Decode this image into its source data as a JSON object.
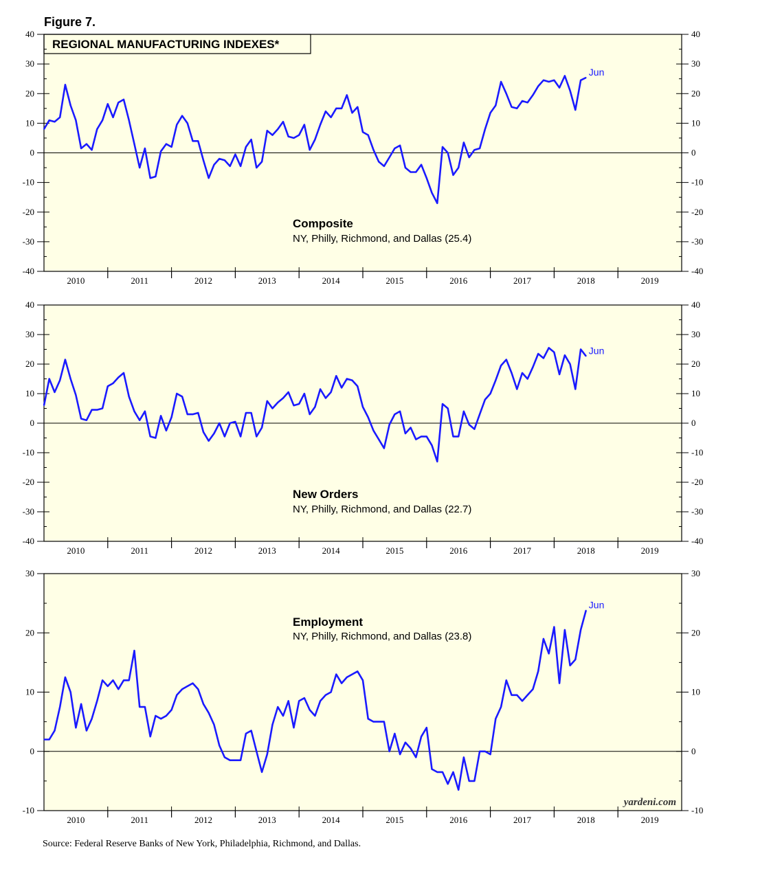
{
  "figure_label": "Figure 7.",
  "title": "REGIONAL MANUFACTURING INDEXES*",
  "source": "Source: Federal Reserve Banks of New York, Philadelphia, Richmond, and Dallas.",
  "watermark": "yardeni.com",
  "colors": {
    "background": "#ffffe6",
    "line": "#1a1aff",
    "axis": "#000000"
  },
  "chart_data": [
    {
      "type": "line",
      "title": "Composite",
      "subtitle": "NY, Philly, Richmond, and Dallas (25.4)",
      "end_label": "Jun",
      "ylim": [
        -40,
        40
      ],
      "yticks": [
        "40",
        "30",
        "20",
        "10",
        "0",
        "-10",
        "-20",
        "-30",
        "-40"
      ],
      "ytick_values": [
        40,
        30,
        20,
        10,
        0,
        -10,
        -20,
        -30,
        -40
      ],
      "year_labels": [
        "2010",
        "2011",
        "2012",
        "2013",
        "2014",
        "2015",
        "2016",
        "2017",
        "2018",
        "2019"
      ],
      "xlim": [
        2009.5,
        2019.5
      ],
      "x_start": 2009.5,
      "x_step": 0.0833333,
      "values": [
        8,
        11,
        10.5,
        12,
        23,
        16,
        11,
        1.5,
        3,
        1,
        8,
        11,
        16.5,
        12,
        17,
        18,
        11,
        3,
        -5,
        1.5,
        -8.5,
        -8,
        0.5,
        3,
        2,
        9.5,
        12.5,
        10,
        4,
        4,
        -2.5,
        -8.5,
        -4,
        -2,
        -2.5,
        -4.5,
        -0.5,
        -4.5,
        2,
        4.5,
        -5,
        -3,
        7.5,
        6,
        8,
        10.5,
        5.5,
        5,
        6,
        9.5,
        1,
        4.5,
        9.5,
        14,
        12,
        15,
        15,
        19.5,
        13.5,
        15.5,
        7,
        6,
        1,
        -3,
        -4.5,
        -1.5,
        1.5,
        2.5,
        -5,
        -6.5,
        -6.5,
        -4,
        -8.5,
        -13.5,
        -17,
        2,
        0,
        -7.5,
        -5,
        3.5,
        -1.5,
        1,
        1.5,
        8,
        13.5,
        16,
        24,
        20,
        15.5,
        15,
        17.5,
        17,
        19.5,
        22.5,
        24.5,
        24,
        24.5,
        22,
        26,
        21,
        14.5,
        24.5,
        25.4
      ]
    },
    {
      "type": "line",
      "title": "New Orders",
      "subtitle": "NY, Philly, Richmond, and Dallas (22.7)",
      "end_label": "Jun",
      "ylim": [
        -40,
        40
      ],
      "yticks": [
        "40",
        "30",
        "20",
        "10",
        "0",
        "-10",
        "-20",
        "-30",
        "-40"
      ],
      "ytick_values": [
        40,
        30,
        20,
        10,
        0,
        -10,
        -20,
        -30,
        -40
      ],
      "year_labels": [
        "2010",
        "2011",
        "2012",
        "2013",
        "2014",
        "2015",
        "2016",
        "2017",
        "2018",
        "2019"
      ],
      "xlim": [
        2009.5,
        2019.5
      ],
      "x_start": 2009.5,
      "x_step": 0.0833333,
      "values": [
        6,
        15,
        10.5,
        14.5,
        21.5,
        15,
        9.5,
        1.5,
        1,
        4.5,
        4.5,
        5,
        12.5,
        13.5,
        15.5,
        17,
        9,
        4,
        1,
        4,
        -4.5,
        -5,
        2.5,
        -2.5,
        2,
        10,
        9,
        3,
        3,
        3.5,
        -3,
        -6,
        -3.5,
        0,
        -4.5,
        0,
        0.5,
        -4.5,
        3.5,
        3.5,
        -4.5,
        -1.5,
        7.5,
        5,
        7,
        8.5,
        10.5,
        6,
        6.5,
        10,
        3,
        5.5,
        11.5,
        8.5,
        10.5,
        16,
        12,
        15,
        14.5,
        12.5,
        5.5,
        2,
        -2.5,
        -5.5,
        -8.5,
        -0.5,
        3,
        4,
        -3.5,
        -1.5,
        -5.5,
        -4.5,
        -4.5,
        -7.5,
        -13,
        6.5,
        5,
        -4.5,
        -4.5,
        4,
        -0.5,
        -2,
        3,
        8,
        10,
        14.5,
        19.5,
        21.5,
        17,
        11.5,
        17,
        15,
        19,
        23.5,
        22,
        25.5,
        24,
        16.5,
        23,
        20,
        11.5,
        25,
        22.7
      ]
    },
    {
      "type": "line",
      "title": "Employment",
      "subtitle": "NY, Philly, Richmond, and Dallas (23.8)",
      "end_label": "Jun",
      "ylim": [
        -10,
        30
      ],
      "yticks": [
        "30",
        "20",
        "10",
        "0",
        "-10"
      ],
      "ytick_values": [
        30,
        20,
        10,
        0,
        -10
      ],
      "year_labels": [
        "2010",
        "2011",
        "2012",
        "2013",
        "2014",
        "2015",
        "2016",
        "2017",
        "2018",
        "2019"
      ],
      "xlim": [
        2009.5,
        2019.5
      ],
      "x_start": 2009.5,
      "x_step": 0.0833333,
      "values": [
        2,
        2,
        3.5,
        7.5,
        12.5,
        10,
        4,
        8,
        3.5,
        5.5,
        8.5,
        12,
        11,
        12,
        10.5,
        12,
        12,
        17,
        7.5,
        7.5,
        2.5,
        6,
        5.5,
        6,
        7,
        9.5,
        10.5,
        11,
        11.5,
        10.5,
        8,
        6.5,
        4.5,
        1,
        -1,
        -1.5,
        -1.5,
        -1.5,
        3,
        3.5,
        0,
        -3.5,
        -0.5,
        4.5,
        7.5,
        6,
        8.5,
        4,
        8.5,
        9,
        7,
        6,
        8.5,
        9.5,
        10,
        13,
        11.5,
        12.5,
        13,
        13.5,
        12,
        5.5,
        5,
        5,
        5,
        0,
        3,
        -0.5,
        1.5,
        0.5,
        -1,
        2.5,
        4,
        -3,
        -3.5,
        -3.5,
        -5.5,
        -3.5,
        -6.5,
        -1,
        -5,
        -5,
        0,
        0,
        -0.5,
        5.5,
        7.5,
        12,
        9.5,
        9.5,
        8.5,
        9.5,
        10.5,
        13.5,
        19,
        16.5,
        21,
        11.5,
        20.5,
        14.5,
        15.5,
        20.5,
        23.8
      ]
    }
  ]
}
